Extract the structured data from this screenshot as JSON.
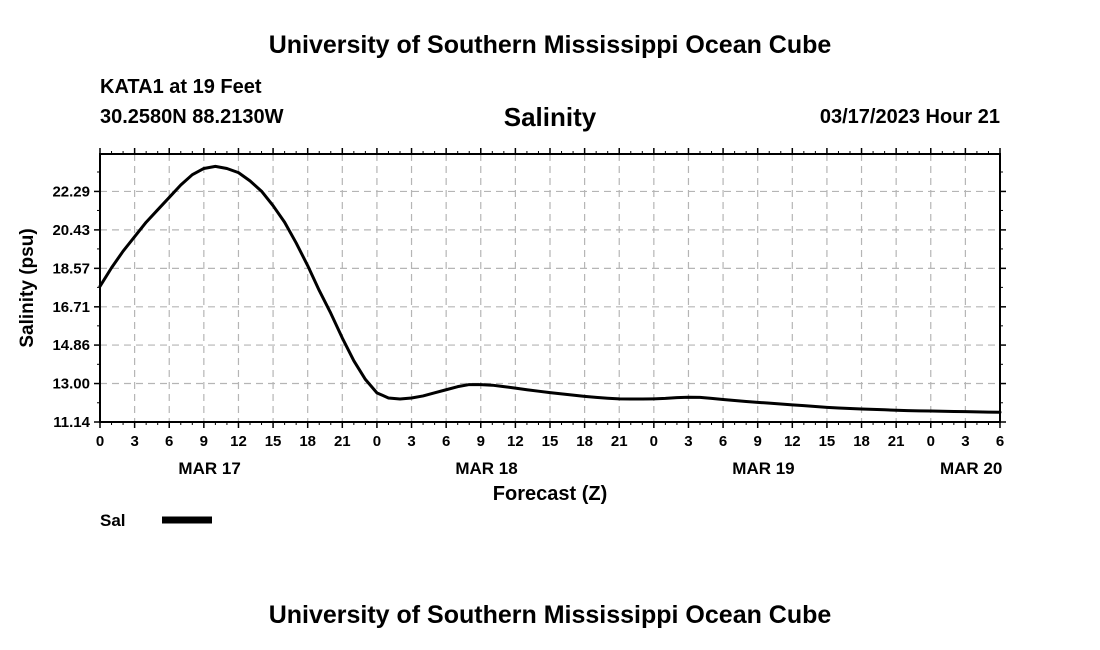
{
  "header": {
    "title_top": "University of Southern Mississippi Ocean Cube",
    "station": "KATA1 at 19 Feet",
    "coords": "30.2580N  88.2130W",
    "variable": "Salinity",
    "timestamp": "03/17/2023 Hour 21"
  },
  "footer": {
    "title_bottom": "University of Southern Mississippi Ocean Cube"
  },
  "chart_data": {
    "type": "line",
    "title": "Salinity",
    "xlabel": "Forecast (Z)",
    "ylabel": "Salinity (psu)",
    "ylim": [
      11.14,
      24.1
    ],
    "y_ticks": [
      "11.14",
      "13.00",
      "14.86",
      "16.71",
      "18.57",
      "20.43",
      "22.29"
    ],
    "x_hour_range": [
      0,
      78
    ],
    "x_tick_labels": [
      "0",
      "3",
      "6",
      "9",
      "12",
      "15",
      "18",
      "21",
      "0",
      "3",
      "6",
      "9",
      "12",
      "15",
      "18",
      "21",
      "0",
      "3",
      "6",
      "9",
      "12",
      "15",
      "18",
      "21",
      "0",
      "3",
      "6"
    ],
    "day_labels": [
      {
        "label": "MAR 17",
        "hour": 9.5
      },
      {
        "label": "MAR 18",
        "hour": 33.5
      },
      {
        "label": "MAR 19",
        "hour": 57.5
      },
      {
        "label": "MAR 20",
        "hour": 75.5
      }
    ],
    "legend": {
      "label": "Sal",
      "position": "bottom-left"
    },
    "series": [
      {
        "name": "Sal",
        "color": "#000000",
        "hours": [
          0,
          1,
          2,
          3,
          4,
          5,
          6,
          7,
          8,
          9,
          10,
          11,
          12,
          13,
          14,
          15,
          16,
          17,
          18,
          19,
          20,
          21,
          22,
          23,
          24,
          25,
          26,
          27,
          28,
          29,
          30,
          31,
          32,
          33,
          34,
          35,
          36,
          37,
          38,
          39,
          40,
          41,
          42,
          43,
          44,
          45,
          46,
          47,
          48,
          49,
          50,
          51,
          52,
          53,
          54,
          55,
          56,
          57,
          58,
          59,
          60,
          61,
          62,
          63,
          64,
          65,
          66,
          67,
          68,
          69,
          70,
          71,
          72,
          73,
          74,
          75,
          76,
          77,
          78
        ],
        "values": [
          17.7,
          18.6,
          19.4,
          20.1,
          20.8,
          21.4,
          22.0,
          22.6,
          23.1,
          23.4,
          23.5,
          23.4,
          23.2,
          22.8,
          22.3,
          21.6,
          20.8,
          19.8,
          18.7,
          17.5,
          16.4,
          15.2,
          14.1,
          13.2,
          12.55,
          12.3,
          12.25,
          12.3,
          12.4,
          12.55,
          12.7,
          12.85,
          12.95,
          12.95,
          12.92,
          12.85,
          12.78,
          12.7,
          12.63,
          12.56,
          12.5,
          12.44,
          12.38,
          12.33,
          12.29,
          12.26,
          12.25,
          12.25,
          12.26,
          12.28,
          12.32,
          12.34,
          12.33,
          12.28,
          12.23,
          12.18,
          12.13,
          12.09,
          12.05,
          12.01,
          11.97,
          11.93,
          11.89,
          11.85,
          11.82,
          11.79,
          11.77,
          11.75,
          11.73,
          11.71,
          11.69,
          11.68,
          11.67,
          11.66,
          11.65,
          11.64,
          11.63,
          11.62,
          11.61
        ]
      }
    ]
  }
}
